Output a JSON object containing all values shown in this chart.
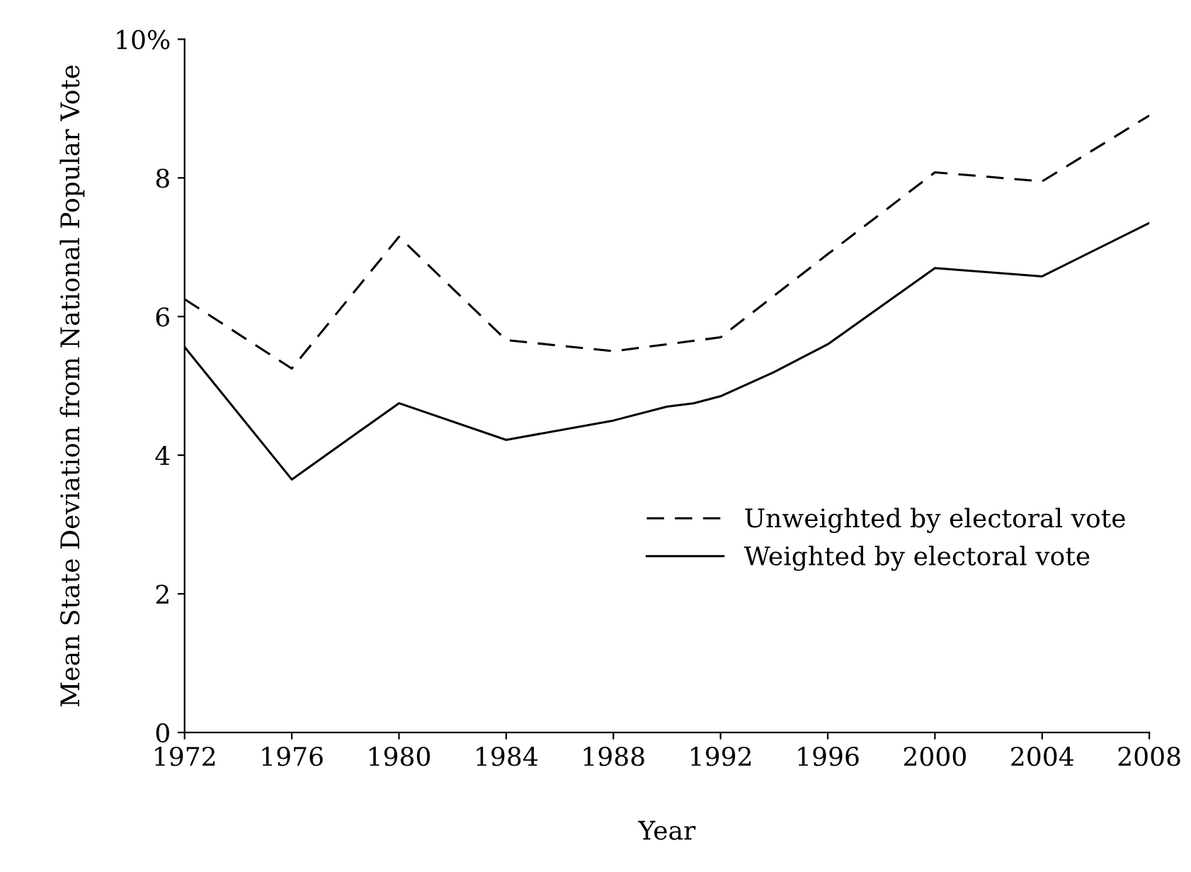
{
  "chart_data": {
    "type": "line",
    "xlabel": "Year",
    "ylabel": "Mean State Deviation from National Popular Vote",
    "xlim": [
      1972,
      2008
    ],
    "xticks": [
      1972,
      1976,
      1980,
      1984,
      1988,
      1992,
      1996,
      2000,
      2004,
      2008
    ],
    "ylim": [
      0,
      10
    ],
    "yticks": [
      0,
      2,
      4,
      6,
      8,
      {
        "value": 10,
        "label": "10%"
      }
    ],
    "grid": false,
    "legend": "bottom right",
    "series": [
      {
        "name": "Unweighted by electoral vote",
        "color": "#000000",
        "line_style": "dashed",
        "x": [
          1972,
          1976,
          1980,
          1984,
          1988,
          1992,
          1996,
          2000,
          2004,
          2008
        ],
        "values": [
          6.25,
          5.25,
          7.15,
          5.66,
          5.5,
          5.7,
          6.9,
          8.08,
          7.95,
          8.9
        ]
      },
      {
        "name": "Weighted by electoral vote",
        "color": "#000000",
        "line_style": "solid",
        "x": [
          1972,
          1976,
          1980,
          1984,
          1988,
          1990,
          1991,
          1992,
          1994,
          1996,
          2000,
          2004,
          2008
        ],
        "values": [
          5.56,
          3.65,
          4.75,
          4.22,
          4.5,
          4.7,
          4.75,
          4.85,
          5.2,
          5.6,
          6.7,
          6.58,
          7.35
        ]
      }
    ]
  }
}
